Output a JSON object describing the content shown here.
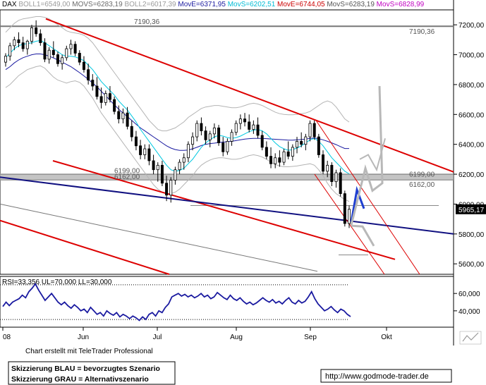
{
  "header": {
    "symbol": "DAX",
    "items": [
      {
        "text": "BOLL1=6549,00",
        "color": "#9a9a9a"
      },
      {
        "text": "MOVS=6283,19",
        "color": "#6a6a6a"
      },
      {
        "text": "BOLL2=6017,39",
        "color": "#9a9a9a"
      },
      {
        "text": "MovE=6371,95",
        "color": "#1a1aa0"
      },
      {
        "text": "MovS=6202,51",
        "color": "#00bcd4"
      },
      {
        "text": "MovE=6744,05",
        "color": "#cc0000"
      },
      {
        "text": "MovS=6283,19",
        "color": "#555555"
      },
      {
        "text": "MovS=6828,99",
        "color": "#c000c0"
      }
    ]
  },
  "rsi_header": "RSI=33,356  UL=70,000  LL=30,000",
  "footer": {
    "credit": "Chart erstellt mit TeleTrader Professional",
    "legend_line1": "Skizzierung BLAU = bevorzugtes Szenario",
    "legend_line2": "Skizzierung GRAU = Alternativszenario",
    "url": "http://www.godmode-trader.de"
  },
  "colors": {
    "candle": "#000000",
    "bollinger": "#b4b4b4",
    "ma_blue": "#1a1aa0",
    "ma_cyan": "#00c8e0",
    "channel_red": "#dd0000",
    "trend_navy": "#101080",
    "support_band": "#b0b0b0",
    "scenario_blue": "#1f3fd0",
    "scenario_gray": "#b8b8b8"
  },
  "chart_data": [
    {
      "type": "candlestick",
      "instrument": "DAX",
      "x_tick_labels": [
        "08",
        "Jun",
        "Jul",
        "Aug",
        "Sep",
        "Okt"
      ],
      "y_ticks": [
        7200,
        7000,
        6800,
        6600,
        6400,
        6200,
        6000,
        5800,
        5600
      ],
      "y_tick_labels": [
        "7200,00",
        "7000,00",
        "6800,00",
        "6600,00",
        "6400,00",
        "6200,00",
        "6000,00",
        "5800,00",
        "5600,00"
      ],
      "ylim": [
        5530,
        7300
      ],
      "last_price": 5965.17,
      "last_price_label": "5965,17",
      "levels": [
        {
          "label": "7190,36",
          "value": 7190.36
        },
        {
          "label": "6199,00",
          "value": 6199.0
        },
        {
          "label": "6162,00",
          "value": 6162.0
        }
      ],
      "ohlc_sample": [
        {
          "o": 6950,
          "h": 7010,
          "l": 6920,
          "c": 6990
        },
        {
          "o": 6990,
          "h": 7080,
          "l": 6960,
          "c": 7060
        },
        {
          "o": 7060,
          "h": 7120,
          "l": 7030,
          "c": 7100
        },
        {
          "o": 7100,
          "h": 7150,
          "l": 7050,
          "c": 7080
        },
        {
          "o": 7080,
          "h": 7120,
          "l": 7020,
          "c": 7040
        },
        {
          "o": 7040,
          "h": 7100,
          "l": 7000,
          "c": 7090
        },
        {
          "o": 7090,
          "h": 7200,
          "l": 7070,
          "c": 7180
        },
        {
          "o": 7180,
          "h": 7230,
          "l": 7120,
          "c": 7140
        },
        {
          "o": 7140,
          "h": 7170,
          "l": 7060,
          "c": 7080
        },
        {
          "o": 7080,
          "h": 7110,
          "l": 6950,
          "c": 6970
        },
        {
          "o": 6970,
          "h": 7050,
          "l": 6940,
          "c": 7030
        },
        {
          "o": 7030,
          "h": 7090,
          "l": 6980,
          "c": 7000
        },
        {
          "o": 7000,
          "h": 7020,
          "l": 6920,
          "c": 6940
        },
        {
          "o": 6940,
          "h": 7000,
          "l": 6900,
          "c": 6980
        },
        {
          "o": 6980,
          "h": 7060,
          "l": 6960,
          "c": 7040
        },
        {
          "o": 7040,
          "h": 7100,
          "l": 7000,
          "c": 7070
        },
        {
          "o": 7070,
          "h": 7090,
          "l": 6990,
          "c": 7010
        },
        {
          "o": 7010,
          "h": 7030,
          "l": 6930,
          "c": 6950
        },
        {
          "o": 6950,
          "h": 6990,
          "l": 6880,
          "c": 6900
        },
        {
          "o": 6900,
          "h": 6940,
          "l": 6800,
          "c": 6830
        },
        {
          "o": 6830,
          "h": 6870,
          "l": 6760,
          "c": 6790
        },
        {
          "o": 6790,
          "h": 6850,
          "l": 6700,
          "c": 6720
        },
        {
          "o": 6720,
          "h": 6780,
          "l": 6640,
          "c": 6680
        },
        {
          "o": 6680,
          "h": 6760,
          "l": 6660,
          "c": 6740
        },
        {
          "o": 6740,
          "h": 6790,
          "l": 6680,
          "c": 6700
        },
        {
          "o": 6700,
          "h": 6720,
          "l": 6600,
          "c": 6620
        },
        {
          "o": 6620,
          "h": 6660,
          "l": 6540,
          "c": 6570
        },
        {
          "o": 6570,
          "h": 6640,
          "l": 6540,
          "c": 6610
        },
        {
          "o": 6610,
          "h": 6650,
          "l": 6500,
          "c": 6520
        },
        {
          "o": 6520,
          "h": 6560,
          "l": 6420,
          "c": 6450
        },
        {
          "o": 6450,
          "h": 6490,
          "l": 6360,
          "c": 6390
        },
        {
          "o": 6390,
          "h": 6430,
          "l": 6300,
          "c": 6330
        },
        {
          "o": 6330,
          "h": 6400,
          "l": 6300,
          "c": 6370
        },
        {
          "o": 6370,
          "h": 6400,
          "l": 6260,
          "c": 6290
        },
        {
          "o": 6290,
          "h": 6330,
          "l": 6200,
          "c": 6230
        },
        {
          "o": 6230,
          "h": 6280,
          "l": 6150,
          "c": 6260
        },
        {
          "o": 6260,
          "h": 6290,
          "l": 6120,
          "c": 6140
        },
        {
          "o": 6140,
          "h": 6190,
          "l": 6020,
          "c": 6060
        },
        {
          "o": 6060,
          "h": 6180,
          "l": 6010,
          "c": 6160
        },
        {
          "o": 6160,
          "h": 6250,
          "l": 6130,
          "c": 6230
        },
        {
          "o": 6230,
          "h": 6300,
          "l": 6200,
          "c": 6280
        },
        {
          "o": 6280,
          "h": 6340,
          "l": 6230,
          "c": 6310
        },
        {
          "o": 6310,
          "h": 6420,
          "l": 6280,
          "c": 6400
        },
        {
          "o": 6400,
          "h": 6480,
          "l": 6360,
          "c": 6450
        },
        {
          "o": 6450,
          "h": 6560,
          "l": 6420,
          "c": 6540
        },
        {
          "o": 6540,
          "h": 6580,
          "l": 6460,
          "c": 6490
        },
        {
          "o": 6490,
          "h": 6520,
          "l": 6400,
          "c": 6430
        },
        {
          "o": 6430,
          "h": 6490,
          "l": 6380,
          "c": 6470
        },
        {
          "o": 6470,
          "h": 6540,
          "l": 6440,
          "c": 6510
        },
        {
          "o": 6510,
          "h": 6530,
          "l": 6390,
          "c": 6410
        },
        {
          "o": 6410,
          "h": 6450,
          "l": 6320,
          "c": 6350
        },
        {
          "o": 6350,
          "h": 6440,
          "l": 6330,
          "c": 6420
        },
        {
          "o": 6420,
          "h": 6500,
          "l": 6390,
          "c": 6480
        },
        {
          "o": 6480,
          "h": 6560,
          "l": 6460,
          "c": 6540
        },
        {
          "o": 6540,
          "h": 6600,
          "l": 6500,
          "c": 6570
        },
        {
          "o": 6570,
          "h": 6610,
          "l": 6520,
          "c": 6550
        },
        {
          "o": 6550,
          "h": 6600,
          "l": 6480,
          "c": 6500
        },
        {
          "o": 6500,
          "h": 6560,
          "l": 6470,
          "c": 6530
        },
        {
          "o": 6530,
          "h": 6580,
          "l": 6440,
          "c": 6460
        },
        {
          "o": 6460,
          "h": 6490,
          "l": 6360,
          "c": 6380
        },
        {
          "o": 6380,
          "h": 6420,
          "l": 6300,
          "c": 6320
        },
        {
          "o": 6320,
          "h": 6380,
          "l": 6240,
          "c": 6270
        },
        {
          "o": 6270,
          "h": 6340,
          "l": 6240,
          "c": 6310
        },
        {
          "o": 6310,
          "h": 6360,
          "l": 6250,
          "c": 6280
        },
        {
          "o": 6280,
          "h": 6370,
          "l": 6260,
          "c": 6350
        },
        {
          "o": 6350,
          "h": 6420,
          "l": 6300,
          "c": 6320
        },
        {
          "o": 6320,
          "h": 6400,
          "l": 6290,
          "c": 6380
        },
        {
          "o": 6380,
          "h": 6450,
          "l": 6340,
          "c": 6420
        },
        {
          "o": 6420,
          "h": 6480,
          "l": 6380,
          "c": 6400
        },
        {
          "o": 6400,
          "h": 6470,
          "l": 6360,
          "c": 6450
        },
        {
          "o": 6450,
          "h": 6560,
          "l": 6420,
          "c": 6540
        },
        {
          "o": 6540,
          "h": 6560,
          "l": 6430,
          "c": 6450
        },
        {
          "o": 6450,
          "h": 6470,
          "l": 6310,
          "c": 6330
        },
        {
          "o": 6330,
          "h": 6360,
          "l": 6200,
          "c": 6220
        },
        {
          "o": 6220,
          "h": 6290,
          "l": 6180,
          "c": 6260
        },
        {
          "o": 6260,
          "h": 6280,
          "l": 6120,
          "c": 6150
        },
        {
          "o": 6150,
          "h": 6230,
          "l": 6110,
          "c": 6210
        },
        {
          "o": 6210,
          "h": 6240,
          "l": 6050,
          "c": 6070
        },
        {
          "o": 6070,
          "h": 6090,
          "l": 5850,
          "c": 5870
        },
        {
          "o": 5870,
          "h": 5990,
          "l": 5840,
          "c": 5965.17
        }
      ],
      "ma_blue": [
        6900,
        6920,
        6945,
        6965,
        6980,
        6990,
        7000,
        7005,
        7005,
        7000,
        6990,
        6978,
        6965,
        6950,
        6935,
        6920,
        6900,
        6880,
        6858,
        6835,
        6810,
        6785,
        6755,
        6725,
        6695,
        6665,
        6635,
        6610,
        6585,
        6560,
        6535,
        6510,
        6490,
        6470,
        6450,
        6430,
        6410,
        6390,
        6375,
        6365,
        6360,
        6360,
        6362,
        6370,
        6380,
        6392,
        6400,
        6405,
        6408,
        6412,
        6415,
        6418,
        6420,
        6425,
        6430,
        6435,
        6438,
        6440,
        6440,
        6440,
        6438,
        6436,
        6434,
        6432,
        6430,
        6428,
        6428,
        6430,
        6432,
        6435,
        6440,
        6442,
        6438,
        6430,
        6420,
        6410,
        6398,
        6385,
        6372,
        6371.95
      ],
      "ma_cyan": [
        6980,
        7010,
        7040,
        7060,
        7070,
        7075,
        7080,
        7090,
        7095,
        7080,
        7060,
        7040,
        7020,
        7000,
        6990,
        6990,
        6985,
        6975,
        6960,
        6930,
        6900,
        6860,
        6820,
        6790,
        6760,
        6730,
        6690,
        6660,
        6630,
        6590,
        6550,
        6500,
        6460,
        6420,
        6380,
        6340,
        6300,
        6260,
        6230,
        6220,
        6225,
        6240,
        6270,
        6300,
        6340,
        6380,
        6410,
        6430,
        6450,
        6460,
        6455,
        6445,
        6440,
        6445,
        6455,
        6470,
        6485,
        6495,
        6500,
        6490,
        6470,
        6440,
        6410,
        6385,
        6370,
        6360,
        6365,
        6375,
        6390,
        6410,
        6430,
        6440,
        6420,
        6390,
        6350,
        6310,
        6280,
        6250,
        6220,
        6202.51
      ],
      "boll_upper": [
        7150,
        7180,
        7210,
        7230,
        7240,
        7245,
        7250,
        7255,
        7255,
        7250,
        7240,
        7220,
        7200,
        7180,
        7160,
        7150,
        7145,
        7140,
        7130,
        7110,
        7080,
        7040,
        7000,
        6960,
        6920,
        6880,
        6840,
        6800,
        6760,
        6720,
        6680,
        6640,
        6600,
        6560,
        6530,
        6500,
        6490,
        6490,
        6500,
        6510,
        6530,
        6550,
        6580,
        6600,
        6620,
        6640,
        6650,
        6655,
        6660,
        6660,
        6655,
        6650,
        6645,
        6645,
        6650,
        6660,
        6670,
        6675,
        6670,
        6660,
        6645,
        6630,
        6615,
        6605,
        6600,
        6598,
        6598,
        6600,
        6605,
        6610,
        6620,
        6640,
        6660,
        6680,
        6690,
        6680,
        6650,
        6610,
        6570,
        6549
      ],
      "boll_lower": [
        6780,
        6800,
        6830,
        6860,
        6880,
        6900,
        6910,
        6920,
        6925,
        6910,
        6880,
        6850,
        6830,
        6820,
        6810,
        6820,
        6825,
        6815,
        6790,
        6750,
        6710,
        6660,
        6610,
        6570,
        6530,
        6490,
        6450,
        6410,
        6370,
        6330,
        6290,
        6250,
        6210,
        6170,
        6130,
        6100,
        6080,
        6070,
        6070,
        6080,
        6100,
        6130,
        6160,
        6190,
        6230,
        6260,
        6280,
        6295,
        6305,
        6310,
        6310,
        6305,
        6300,
        6300,
        6305,
        6315,
        6325,
        6330,
        6325,
        6315,
        6300,
        6280,
        6265,
        6255,
        6250,
        6250,
        6252,
        6255,
        6260,
        6265,
        6270,
        6260,
        6230,
        6190,
        6140,
        6100,
        6070,
        6050,
        6030,
        6017.39
      ]
    },
    {
      "type": "line",
      "title": "RSI",
      "y_ticks": [
        60,
        40
      ],
      "y_tick_labels": [
        "60,000",
        "40,000"
      ],
      "ylim": [
        22,
        78
      ],
      "upper_level": 70,
      "lower_level": 30,
      "last_value": 33.356,
      "values": [
        45,
        50,
        46,
        50,
        52,
        54,
        58,
        55,
        62,
        66,
        71,
        64,
        58,
        52,
        56,
        60,
        55,
        50,
        47,
        50,
        46,
        43,
        47,
        44,
        40,
        42,
        38,
        44,
        40,
        36,
        38,
        34,
        40,
        37,
        35,
        38,
        33,
        36,
        34,
        31,
        34,
        32,
        29,
        33,
        30,
        36,
        38,
        34,
        40,
        38,
        44,
        48,
        56,
        58,
        60,
        57,
        59,
        56,
        58,
        55,
        57,
        60,
        56,
        58,
        54,
        56,
        61,
        58,
        55,
        53,
        58,
        54,
        52,
        55,
        51,
        48,
        50,
        47,
        49,
        52,
        55,
        52,
        50,
        53,
        49,
        51,
        48,
        52,
        55,
        50,
        48,
        52,
        49,
        51,
        56,
        62,
        54,
        48,
        44,
        40,
        42,
        45,
        41,
        38,
        42,
        40,
        36,
        33.356
      ]
    }
  ]
}
